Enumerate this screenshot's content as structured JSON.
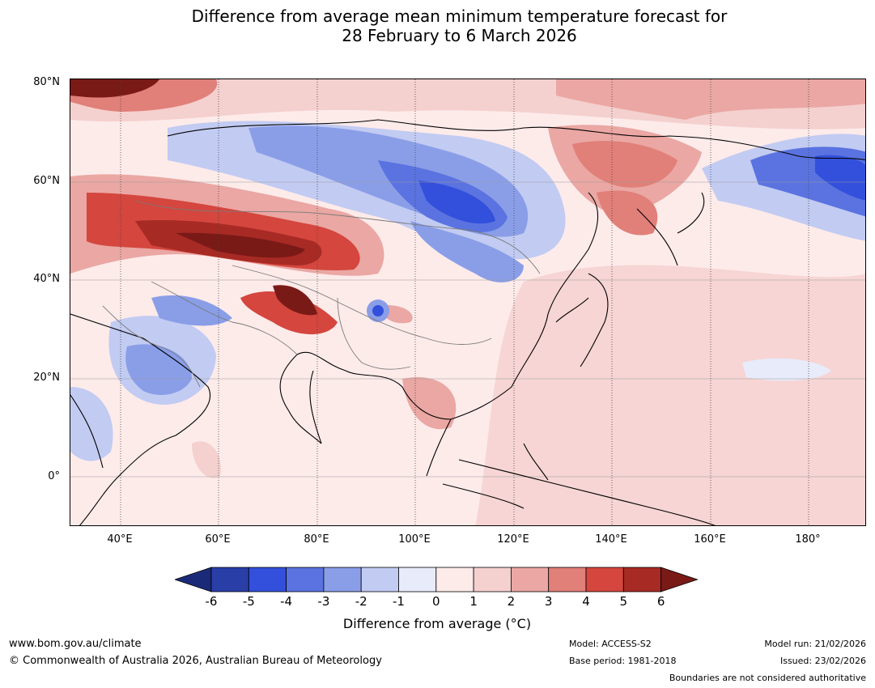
{
  "title": {
    "line1": "Difference from average mean minimum temperature forecast for",
    "line2": "28 February to 6 March 2026"
  },
  "axes": {
    "lat_labels": [
      "80°N",
      "60°N",
      "40°N",
      "20°N",
      "0°"
    ],
    "lon_labels": [
      "40°E",
      "60°E",
      "80°E",
      "100°E",
      "120°E",
      "140°E",
      "160°E",
      "180°"
    ]
  },
  "legend": {
    "ticks": [
      "-6",
      "-5",
      "-4",
      "-3",
      "-2",
      "-1",
      "0",
      "1",
      "2",
      "3",
      "4",
      "5",
      "6"
    ],
    "colors": [
      "#1b2a78",
      "#2a3ea8",
      "#3350dc",
      "#5a73e0",
      "#8a9ee8",
      "#c2cbf2",
      "#e8ebfa",
      "#fdebea",
      "#f4d0ce",
      "#eaa7a3",
      "#e17f79",
      "#d4463e",
      "#a82a24",
      "#7a1a17"
    ],
    "title": "Difference from average (°C)"
  },
  "footer": {
    "website": "www.bom.gov.au/climate",
    "copyright": "© Commonwealth of Australia 2026, Australian Bureau of Meteorology",
    "model": "Model: ACCESS-S2",
    "base_period": "Base period: 1981-2018",
    "model_run": "Model run: 21/02/2026",
    "issued": "Issued: 23/02/2026",
    "disclaimer": "Boundaries are not considered authoritative"
  }
}
